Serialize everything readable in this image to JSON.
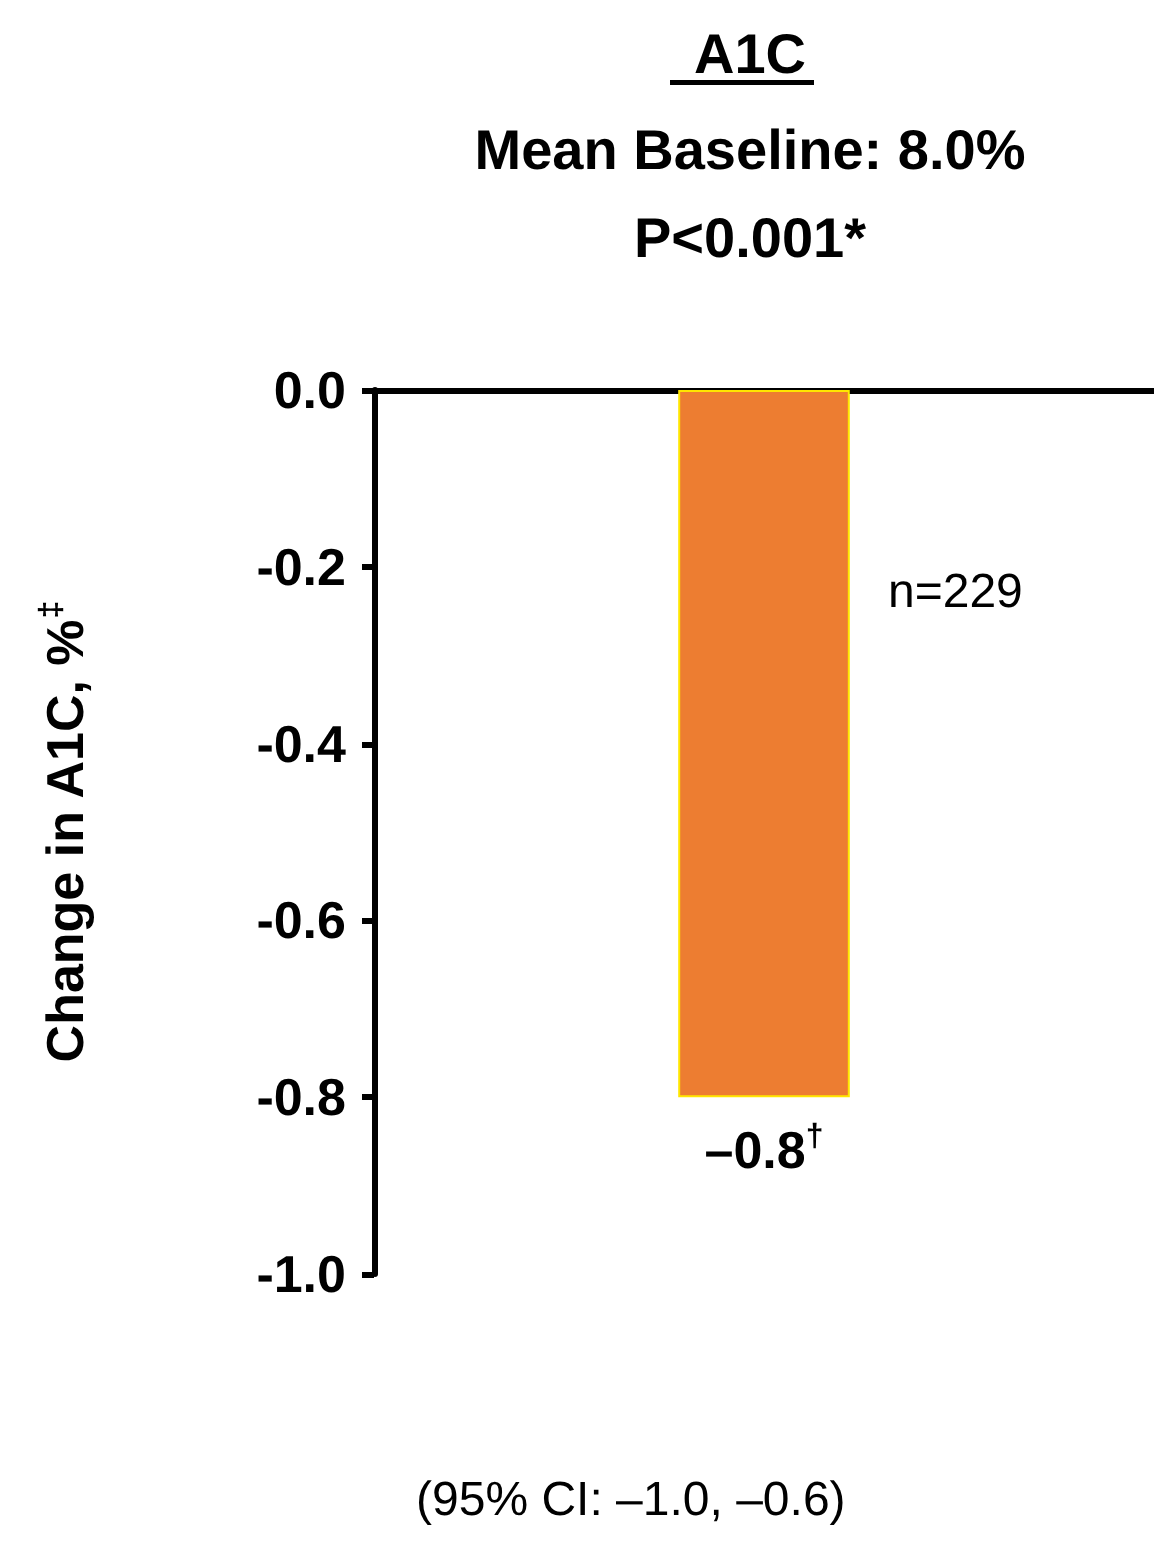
{
  "chart_data": {
    "type": "bar",
    "title": "A1C",
    "subtitle": "Mean Baseline: 8.0%\nP<0.001*",
    "ylabel": "Change in A1C, %$^{‡}$",
    "categories": [
      null
    ],
    "series": [
      {
        "color": "#ed7d31",
        "values": [
          -0.8
        ],
        "value_labels": [
          "–0.8$^{†}$"
        ]
      }
    ],
    "ylim": [
      -1.0,
      0
    ],
    "yticks": [
      {
        "value": 0,
        "label": "0.0"
      },
      {
        "value": -0.2,
        "label": "-0.2"
      },
      {
        "value": -0.4,
        "label": "-0.4"
      },
      {
        "value": -0.6,
        "label": "-0.6"
      },
      {
        "value": -0.8,
        "label": "-0.8"
      },
      {
        "value": -1.0,
        "label": "-1.0"
      }
    ],
    "annotations": [
      "n=229",
      "(95% CI: –1.0, –0.6)"
    ]
  }
}
